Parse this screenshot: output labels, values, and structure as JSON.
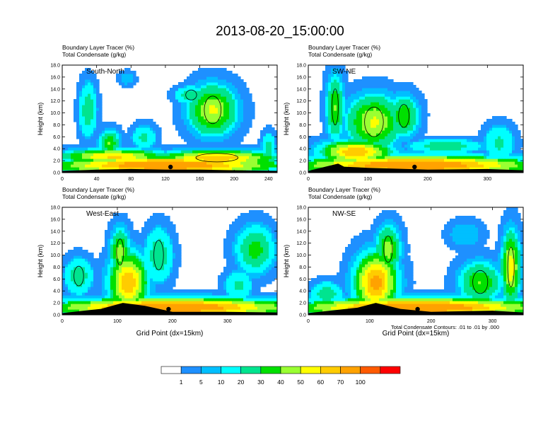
{
  "title": "2013-08-20_15:00:00",
  "panel_header": {
    "line1_name": "Boundary Layer Tracer",
    "line1_unit": "(%)",
    "line2_name": "Total Condensate",
    "line2_unit": "(g/kg)"
  },
  "footnote": "Total Condensate Contours: .01 to .01 by .000",
  "colors": {
    "levels": [
      "#ffffff",
      "#1e90ff",
      "#00bfff",
      "#00ffff",
      "#00e48f",
      "#00e000",
      "#9aff32",
      "#ffff00",
      "#ffcc00",
      "#ffa200",
      "#ff5a00",
      "#ff0000"
    ],
    "contour": "#000000",
    "marker": "#000000"
  },
  "colorbar": {
    "labels": [
      "1",
      "5",
      "10",
      "20",
      "30",
      "40",
      "50",
      "60",
      "70",
      "100"
    ]
  },
  "chart_data": [
    {
      "type": "heatmap",
      "title": "South-North",
      "ylabel": "Height (km)",
      "xlabel": "",
      "xlim": [
        0,
        250
      ],
      "ylim": [
        0,
        18
      ],
      "xticks": [
        0,
        40,
        80,
        120,
        160,
        200,
        240
      ],
      "yticks": [
        "0.0",
        "2.0",
        "4.0",
        "6.0",
        "8.0",
        "10.0",
        "12.0",
        "14.0",
        "16.0",
        "18.0"
      ],
      "marker_x": 126,
      "terrain": [
        [
          0,
          0.3
        ],
        [
          40,
          0.5
        ],
        [
          80,
          0.6
        ],
        [
          120,
          0.5
        ],
        [
          160,
          0.5
        ],
        [
          200,
          0.4
        ],
        [
          250,
          0.3
        ]
      ],
      "blobs": [
        {
          "x": 120,
          "y": 1.3,
          "rx": 130,
          "ry": 1.5,
          "v": 75
        },
        {
          "x": 60,
          "y": 2.8,
          "rx": 60,
          "ry": 1.2,
          "v": 55
        },
        {
          "x": 180,
          "y": 2.5,
          "rx": 70,
          "ry": 1.3,
          "v": 60
        },
        {
          "x": 175,
          "y": 10.5,
          "rx": 28,
          "ry": 4.2,
          "v": 45
        },
        {
          "x": 150,
          "y": 13.0,
          "rx": 18,
          "ry": 1.5,
          "v": 25
        },
        {
          "x": 30,
          "y": 10.5,
          "rx": 10,
          "ry": 4.5,
          "v": 25
        },
        {
          "x": 55,
          "y": 5.0,
          "rx": 12,
          "ry": 2.2,
          "v": 35
        },
        {
          "x": 95,
          "y": 6.0,
          "rx": 14,
          "ry": 2.0,
          "v": 20
        },
        {
          "x": 75,
          "y": 15.8,
          "rx": 10,
          "ry": 1.2,
          "v": 8
        },
        {
          "x": 240,
          "y": 4.0,
          "rx": 8,
          "ry": 2.5,
          "v": 25
        }
      ]
    },
    {
      "type": "heatmap",
      "title": "SW-NE",
      "ylabel": "Height (km)",
      "xlabel": "",
      "xlim": [
        0,
        360
      ],
      "ylim": [
        0,
        18
      ],
      "xticks": [
        0,
        100,
        200,
        300
      ],
      "yticks": [
        "0.0",
        "2.0",
        "4.0",
        "6.0",
        "8.0",
        "10.0",
        "12.0",
        "14.0",
        "16.0",
        "18.0"
      ],
      "marker_x": 178,
      "terrain": [
        [
          0,
          0.3
        ],
        [
          50,
          1.5
        ],
        [
          60,
          1.0
        ],
        [
          100,
          0.8
        ],
        [
          200,
          0.5
        ],
        [
          300,
          0.6
        ],
        [
          360,
          0.4
        ]
      ],
      "blobs": [
        {
          "x": 180,
          "y": 1.3,
          "rx": 200,
          "ry": 1.6,
          "v": 75
        },
        {
          "x": 80,
          "y": 3.5,
          "rx": 60,
          "ry": 2.0,
          "v": 60
        },
        {
          "x": 110,
          "y": 8.5,
          "rx": 45,
          "ry": 4.5,
          "v": 45
        },
        {
          "x": 45,
          "y": 11.0,
          "rx": 15,
          "ry": 5.5,
          "v": 35
        },
        {
          "x": 160,
          "y": 9.5,
          "rx": 25,
          "ry": 3.5,
          "v": 35
        },
        {
          "x": 230,
          "y": 4.5,
          "rx": 60,
          "ry": 1.2,
          "v": 25
        },
        {
          "x": 320,
          "y": 5.0,
          "rx": 25,
          "ry": 3.0,
          "v": 20
        }
      ]
    },
    {
      "type": "heatmap",
      "title": "West-East",
      "ylabel": "Height (km)",
      "xlabel": "Grid Point (dx=15km)",
      "xlim": [
        0,
        390
      ],
      "ylim": [
        0,
        18
      ],
      "xticks": [
        0,
        100,
        200,
        300
      ],
      "yticks": [
        "0.0",
        "2.0",
        "4.0",
        "6.0",
        "8.0",
        "10.0",
        "12.0",
        "14.0",
        "16.0",
        "18.0"
      ],
      "marker_x": 193,
      "terrain": [
        [
          0,
          0.3
        ],
        [
          70,
          1.0
        ],
        [
          110,
          2.0
        ],
        [
          150,
          1.5
        ],
        [
          200,
          0.5
        ],
        [
          300,
          0.5
        ],
        [
          390,
          0.4
        ]
      ],
      "blobs": [
        {
          "x": 200,
          "y": 1.3,
          "rx": 220,
          "ry": 1.6,
          "v": 75
        },
        {
          "x": 120,
          "y": 5.5,
          "rx": 35,
          "ry": 5.0,
          "v": 60
        },
        {
          "x": 105,
          "y": 10.5,
          "rx": 18,
          "ry": 4.0,
          "v": 40
        },
        {
          "x": 30,
          "y": 6.5,
          "rx": 25,
          "ry": 3.0,
          "v": 25
        },
        {
          "x": 175,
          "y": 10.0,
          "rx": 25,
          "ry": 4.5,
          "v": 25
        },
        {
          "x": 350,
          "y": 11.0,
          "rx": 35,
          "ry": 4.0,
          "v": 30
        },
        {
          "x": 320,
          "y": 5.0,
          "rx": 25,
          "ry": 2.5,
          "v": 20
        }
      ]
    },
    {
      "type": "heatmap",
      "title": "NW-SE",
      "ylabel": "Height (km)",
      "xlabel": "Grid Point (dx=15km)",
      "xlim": [
        0,
        350
      ],
      "ylim": [
        0,
        18
      ],
      "xticks": [
        0,
        100,
        200,
        300
      ],
      "yticks": [
        "0.0",
        "2.0",
        "4.0",
        "6.0",
        "8.0",
        "10.0",
        "12.0",
        "14.0",
        "16.0",
        "18.0"
      ],
      "marker_x": 178,
      "terrain": [
        [
          0,
          0.3
        ],
        [
          80,
          1.2
        ],
        [
          110,
          2.0
        ],
        [
          150,
          1.0
        ],
        [
          200,
          0.5
        ],
        [
          300,
          0.7
        ],
        [
          350,
          0.4
        ]
      ],
      "blobs": [
        {
          "x": 180,
          "y": 1.3,
          "rx": 200,
          "ry": 1.6,
          "v": 75
        },
        {
          "x": 110,
          "y": 5.5,
          "rx": 35,
          "ry": 5.0,
          "v": 65
        },
        {
          "x": 130,
          "y": 11.0,
          "rx": 20,
          "ry": 4.0,
          "v": 40
        },
        {
          "x": 330,
          "y": 8.0,
          "rx": 15,
          "ry": 6.0,
          "v": 50
        },
        {
          "x": 280,
          "y": 5.5,
          "rx": 35,
          "ry": 3.5,
          "v": 35
        },
        {
          "x": 255,
          "y": 13.5,
          "rx": 30,
          "ry": 2.5,
          "v": 8
        },
        {
          "x": 30,
          "y": 3.5,
          "rx": 25,
          "ry": 2.0,
          "v": 25
        }
      ]
    }
  ]
}
